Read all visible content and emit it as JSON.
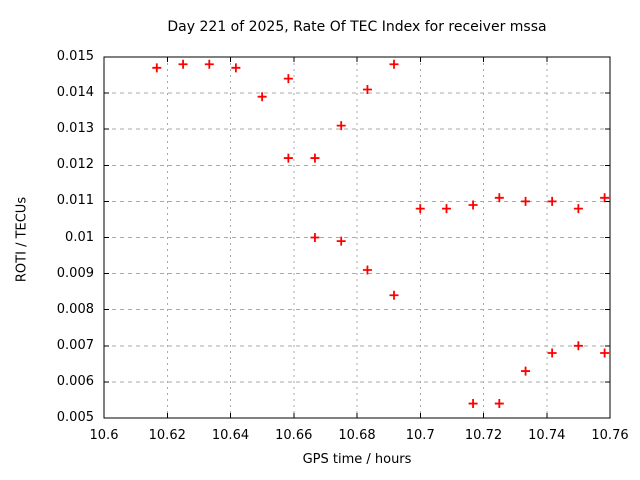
{
  "chart_data": {
    "type": "scatter",
    "title": "Day 221 of 2025, Rate Of TEC Index for receiver mssa",
    "xlabel": "GPS time / hours",
    "ylabel": "ROTI / TECUs",
    "xlim": [
      10.6,
      10.76
    ],
    "ylim": [
      0.005,
      0.015
    ],
    "xticks": [
      {
        "value": 10.6,
        "label": "10.6"
      },
      {
        "value": 10.62,
        "label": "10.62"
      },
      {
        "value": 10.64,
        "label": "10.64"
      },
      {
        "value": 10.66,
        "label": "10.66"
      },
      {
        "value": 10.68,
        "label": "10.68"
      },
      {
        "value": 10.7,
        "label": "10.7"
      },
      {
        "value": 10.72,
        "label": "10.72"
      },
      {
        "value": 10.74,
        "label": "10.74"
      },
      {
        "value": 10.76,
        "label": "10.76"
      }
    ],
    "yticks": [
      {
        "value": 0.005,
        "label": "0.005"
      },
      {
        "value": 0.006,
        "label": "0.006"
      },
      {
        "value": 0.007,
        "label": "0.007"
      },
      {
        "value": 0.008,
        "label": "0.008"
      },
      {
        "value": 0.009,
        "label": "0.009"
      },
      {
        "value": 0.01,
        "label": "0.01"
      },
      {
        "value": 0.011,
        "label": "0.011"
      },
      {
        "value": 0.012,
        "label": "0.012"
      },
      {
        "value": 0.013,
        "label": "0.013"
      },
      {
        "value": 0.014,
        "label": "0.014"
      },
      {
        "value": 0.015,
        "label": "0.015"
      }
    ],
    "grid": true,
    "legend": "none",
    "marker": "plus",
    "marker_color": "#ff0000",
    "grid_color": "#aaaaaa",
    "border_color": "#000000",
    "series": [
      {
        "name": "ROTI",
        "points": [
          [
            10.6167,
            0.0147
          ],
          [
            10.625,
            0.0148
          ],
          [
            10.6333,
            0.0148
          ],
          [
            10.6417,
            0.0147
          ],
          [
            10.65,
            0.0139
          ],
          [
            10.6583,
            0.0144
          ],
          [
            10.6583,
            0.0122
          ],
          [
            10.6667,
            0.0122
          ],
          [
            10.6667,
            0.01
          ],
          [
            10.675,
            0.0131
          ],
          [
            10.675,
            0.0099
          ],
          [
            10.6833,
            0.0141
          ],
          [
            10.6833,
            0.0091
          ],
          [
            10.6917,
            0.0148
          ],
          [
            10.6917,
            0.0084
          ],
          [
            10.7,
            0.0108
          ],
          [
            10.7083,
            0.0108
          ],
          [
            10.7167,
            0.0109
          ],
          [
            10.7167,
            0.0054
          ],
          [
            10.725,
            0.0111
          ],
          [
            10.725,
            0.0054
          ],
          [
            10.7333,
            0.011
          ],
          [
            10.7333,
            0.0063
          ],
          [
            10.7417,
            0.011
          ],
          [
            10.7417,
            0.0068
          ],
          [
            10.75,
            0.0108
          ],
          [
            10.75,
            0.007
          ],
          [
            10.7583,
            0.0111
          ],
          [
            10.7583,
            0.0068
          ]
        ]
      }
    ]
  }
}
